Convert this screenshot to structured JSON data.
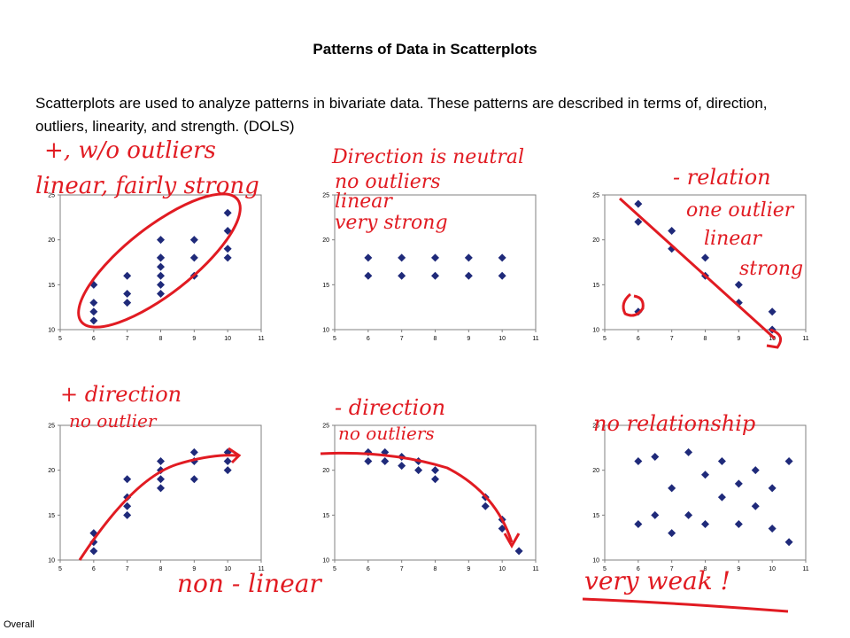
{
  "title": "Patterns of Data in Scatterplots",
  "intro": "Scatterplots are used to analyze patterns in bivariate data. These patterns are described in terms of, direction, outliers, linearity, and strength. (DOLS)",
  "footer": "Overall",
  "colors": {
    "marker": "#1f2a7a",
    "annotation": "#e11b22",
    "axis": "#808080"
  },
  "annotations": [
    "+, w/o outliers",
    "linear, fairly strong",
    "Direction is neutral",
    "no outliers",
    "linear",
    "very strong",
    "- relation",
    "one outlier",
    "linear",
    "strong",
    "+ direction",
    "no outlier",
    "non - linear",
    "- direction",
    "no outliers",
    "no relationship",
    "very weak !"
  ],
  "chart_data": [
    {
      "type": "scatter",
      "xlim": [
        5,
        11
      ],
      "ylim": [
        10,
        25
      ],
      "x_ticks": [
        5,
        6,
        7,
        8,
        9,
        10,
        11
      ],
      "y_ticks": [
        10,
        15,
        20,
        25
      ],
      "x": [
        6,
        6,
        6,
        6,
        7,
        7,
        7,
        8,
        8,
        8,
        8,
        8,
        8,
        8,
        9,
        9,
        9,
        10,
        10,
        10,
        10
      ],
      "y": [
        11,
        12,
        13,
        15,
        13,
        14,
        16,
        14,
        15,
        16,
        17,
        18,
        20,
        18,
        16,
        18,
        20,
        18,
        19,
        21,
        23
      ]
    },
    {
      "type": "scatter",
      "xlim": [
        5,
        11
      ],
      "ylim": [
        10,
        25
      ],
      "x_ticks": [
        5,
        6,
        7,
        8,
        9,
        10,
        11
      ],
      "y_ticks": [
        10,
        15,
        20,
        25
      ],
      "x": [
        6,
        6,
        7,
        7,
        8,
        8,
        9,
        9,
        10,
        10
      ],
      "y": [
        16,
        18,
        16,
        18,
        16,
        18,
        16,
        18,
        16,
        18
      ]
    },
    {
      "type": "scatter",
      "xlim": [
        5,
        11
      ],
      "ylim": [
        10,
        25
      ],
      "x_ticks": [
        5,
        6,
        7,
        8,
        9,
        10,
        11
      ],
      "y_ticks": [
        10,
        15,
        20,
        25
      ],
      "x": [
        6,
        6,
        6,
        7,
        7,
        8,
        8,
        9,
        9,
        10,
        10
      ],
      "y": [
        24,
        22,
        12,
        21,
        19,
        18,
        16,
        15,
        13,
        12,
        10
      ]
    },
    {
      "type": "scatter",
      "xlim": [
        5,
        11
      ],
      "ylim": [
        10,
        25
      ],
      "x_ticks": [
        5,
        6,
        7,
        8,
        9,
        10,
        11
      ],
      "y_ticks": [
        10,
        15,
        20,
        25
      ],
      "x": [
        6,
        6,
        6,
        7,
        7,
        7,
        7,
        8,
        8,
        8,
        8,
        9,
        9,
        9,
        10,
        10,
        10
      ],
      "y": [
        11,
        12,
        13,
        15,
        16,
        17,
        19,
        18,
        19,
        20,
        21,
        19,
        21,
        22,
        20,
        21,
        22
      ]
    },
    {
      "type": "scatter",
      "xlim": [
        5,
        11
      ],
      "ylim": [
        10,
        25
      ],
      "x_ticks": [
        5,
        6,
        7,
        8,
        9,
        10,
        11
      ],
      "y_ticks": [
        10,
        15,
        20,
        25
      ],
      "x": [
        6,
        6,
        6.5,
        6.5,
        7,
        7,
        7.5,
        7.5,
        8,
        8,
        9.5,
        9.5,
        10,
        10,
        10.5
      ],
      "y": [
        22,
        21,
        22,
        21,
        21.5,
        20.5,
        21,
        20,
        20,
        19,
        17,
        16,
        14.5,
        13.5,
        11
      ]
    },
    {
      "type": "scatter",
      "xlim": [
        5,
        11
      ],
      "ylim": [
        10,
        25
      ],
      "x_ticks": [
        5,
        6,
        7,
        8,
        9,
        10,
        11
      ],
      "y_ticks": [
        10,
        15,
        20,
        25
      ],
      "x": [
        6,
        6,
        6.5,
        6.5,
        7,
        7,
        7.5,
        7.5,
        8,
        8,
        8.5,
        8.5,
        9,
        9,
        9.5,
        9.5,
        10,
        10,
        10.5,
        10.5
      ],
      "y": [
        21,
        14,
        21.5,
        15,
        18,
        13,
        22,
        15,
        14,
        19.5,
        21,
        17,
        14,
        18.5,
        16,
        20,
        13.5,
        18,
        12,
        21
      ]
    }
  ]
}
